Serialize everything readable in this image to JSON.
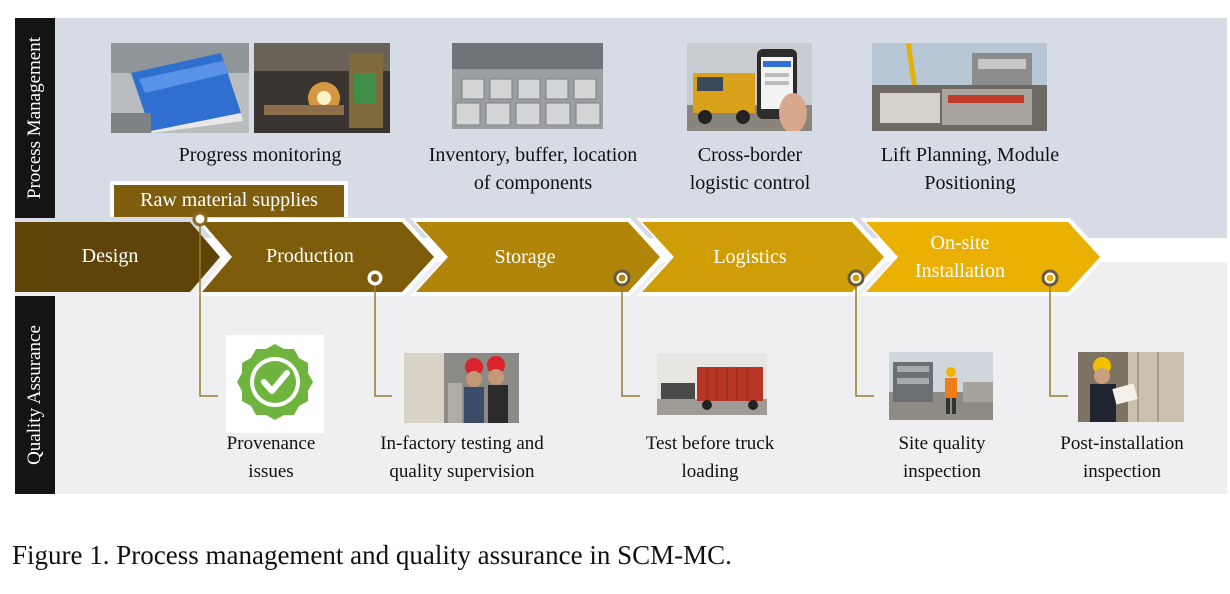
{
  "sections": {
    "top": "Process Management",
    "bottom": "Quality Assurance"
  },
  "raw_material_label": "Raw material supplies",
  "stages": [
    {
      "label": "Design",
      "color": "#5e4408"
    },
    {
      "label": "Production",
      "color": "#7d5c0c"
    },
    {
      "label": "Storage",
      "color": "#b08509"
    },
    {
      "label": "Logistics",
      "color": "#cf9e06"
    },
    {
      "label": "On-site\nInstallation",
      "color": "#eab003"
    }
  ],
  "process_items": [
    {
      "caption": "Progress monitoring",
      "images": [
        "sandwich-panels-photo",
        "welding-photo"
      ]
    },
    {
      "caption": "Inventory, buffer, location\nof components",
      "images": [
        "warehouse-photo"
      ]
    },
    {
      "caption": "Cross-border\nlogistic control",
      "images": [
        "truck-phone-photo"
      ]
    },
    {
      "caption": "Lift Planning, Module\nPositioning",
      "images": [
        "crane-site-photo"
      ]
    }
  ],
  "quality_items": [
    {
      "caption": "Provenance\nissues",
      "icon": "check-badge-icon"
    },
    {
      "caption": "In-factory testing and\nquality supervision",
      "icon": "factory-inspection-photo"
    },
    {
      "caption": "Test before truck\nloading",
      "icon": "container-truck-photo"
    },
    {
      "caption": "Site quality\ninspection",
      "icon": "site-worker-photo"
    },
    {
      "caption": "Post-installation\ninspection",
      "icon": "inspector-photo"
    }
  ],
  "figure_caption": "Figure 1. Process management and quality assurance in SCM-MC."
}
